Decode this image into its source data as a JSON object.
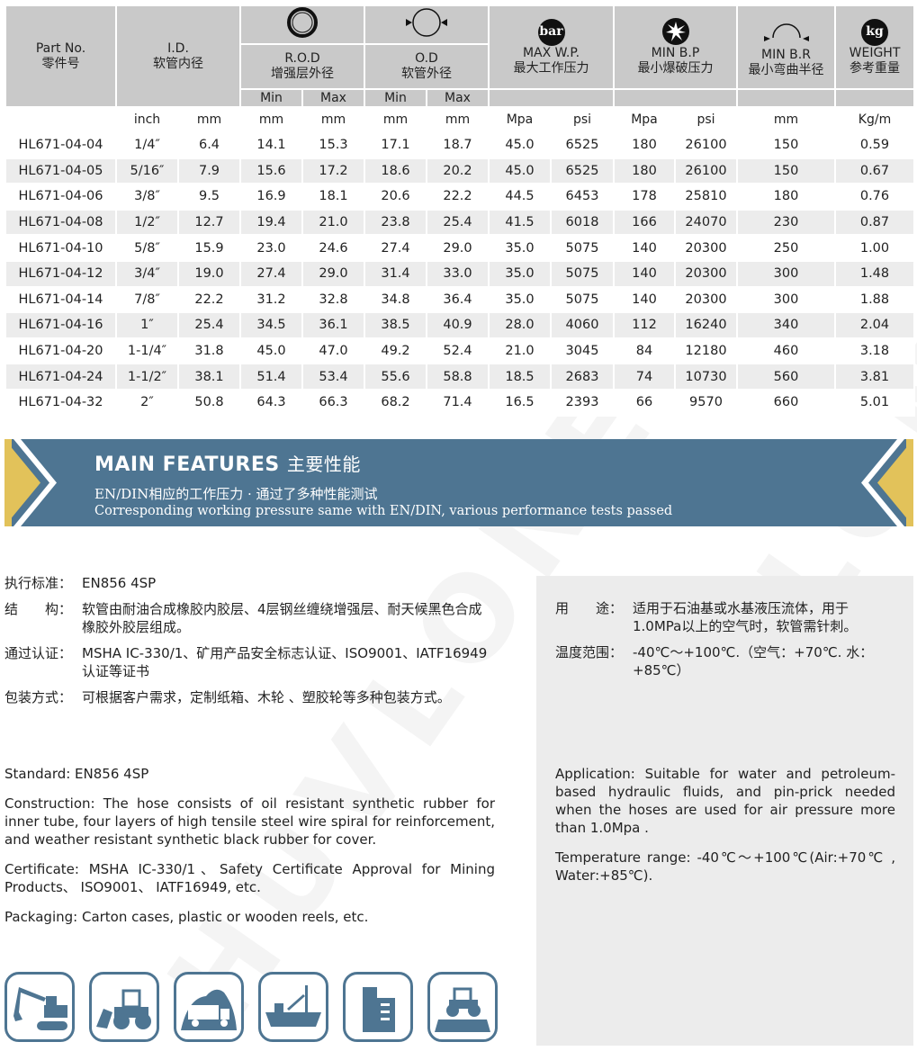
{
  "watermark": "HUVLONE",
  "table": {
    "headers": {
      "part_no": [
        "Part No.",
        "零件号"
      ],
      "id": [
        "I.D.",
        "软管内径"
      ],
      "rod": [
        "R.O.D",
        "增强层外径"
      ],
      "od": [
        "O.D",
        "软管外径"
      ],
      "wp": [
        "MAX W.P.",
        "最大工作压力"
      ],
      "bp": [
        "MIN B.P",
        "最小爆破压力"
      ],
      "br": [
        "MIN B.R",
        "最小弯曲半径"
      ],
      "weight": [
        "WEIGHT",
        "参考重量"
      ],
      "min": "Min",
      "max": "Max",
      "bar_badge": "bar",
      "kg_badge": "kg"
    },
    "units": [
      "",
      "inch",
      "mm",
      "mm",
      "mm",
      "mm",
      "mm",
      "Mpa",
      "psi",
      "Mpa",
      "psi",
      "mm",
      "Kg/m"
    ],
    "rows": [
      [
        "HL671-04-04",
        "1/4″",
        "6.4",
        "14.1",
        "15.3",
        "17.1",
        "18.7",
        "45.0",
        "6525",
        "180",
        "26100",
        "150",
        "0.59"
      ],
      [
        "HL671-04-05",
        "5/16″",
        "7.9",
        "15.6",
        "17.2",
        "18.6",
        "20.2",
        "45.0",
        "6525",
        "180",
        "26100",
        "150",
        "0.67"
      ],
      [
        "HL671-04-06",
        "3/8″",
        "9.5",
        "16.9",
        "18.1",
        "20.6",
        "22.2",
        "44.5",
        "6453",
        "178",
        "25810",
        "180",
        "0.76"
      ],
      [
        "HL671-04-08",
        "1/2″",
        "12.7",
        "19.4",
        "21.0",
        "23.8",
        "25.4",
        "41.5",
        "6018",
        "166",
        "24070",
        "230",
        "0.87"
      ],
      [
        "HL671-04-10",
        "5/8″",
        "15.9",
        "23.0",
        "24.6",
        "27.4",
        "29.0",
        "35.0",
        "5075",
        "140",
        "20300",
        "250",
        "1.00"
      ],
      [
        "HL671-04-12",
        "3/4″",
        "19.0",
        "27.4",
        "29.0",
        "31.4",
        "33.0",
        "35.0",
        "5075",
        "140",
        "20300",
        "300",
        "1.48"
      ],
      [
        "HL671-04-14",
        "7/8″",
        "22.2",
        "31.2",
        "32.8",
        "34.8",
        "36.4",
        "35.0",
        "5075",
        "140",
        "20300",
        "300",
        "1.88"
      ],
      [
        "HL671-04-16",
        "1″",
        "25.4",
        "34.5",
        "36.1",
        "38.5",
        "40.9",
        "28.0",
        "4060",
        "112",
        "16240",
        "340",
        "2.04"
      ],
      [
        "HL671-04-20",
        "1-1/4″",
        "31.8",
        "45.0",
        "47.0",
        "49.2",
        "52.4",
        "21.0",
        "3045",
        "84",
        "12180",
        "460",
        "3.18"
      ],
      [
        "HL671-04-24",
        "1-1/2″",
        "38.1",
        "51.4",
        "53.4",
        "55.6",
        "58.8",
        "18.5",
        "2683",
        "74",
        "10730",
        "560",
        "3.81"
      ],
      [
        "HL671-04-32",
        "2″",
        "50.8",
        "64.3",
        "66.3",
        "68.2",
        "71.4",
        "16.5",
        "2393",
        "66",
        "9570",
        "660",
        "5.01"
      ]
    ]
  },
  "banner": {
    "title": "MAIN FEATURES",
    "title_cn": "主要性能",
    "subtitle_cn": "EN/DIN相应的工作压力 · 通过了多种性能测试",
    "subtitle_en": "Corresponding working pressure same with EN/DIN, various performance tests passed",
    "colors": {
      "background": "#4e7592",
      "accent": "#e2c25a"
    }
  },
  "features_cn_left": [
    {
      "label": "执行标准：",
      "value": "EN856 4SP"
    },
    {
      "label": "结　　构：",
      "value": "软管由耐油合成橡胶内胶层、4层钢丝缠绕增强层、耐天候黑色合成橡胶外胶层组成。"
    },
    {
      "label": "通过认证：",
      "value": "MSHA IC-330/1、矿用产品安全标志认证、ISO9001、IATF16949认证等证书"
    },
    {
      "label": "包装方式：",
      "value": "可根据客户需求，定制纸箱、木轮 、塑胶轮等多种包装方式。"
    }
  ],
  "features_cn_right": [
    {
      "label": "用　　途：",
      "value": "适用于石油基或水基液压流体，用于1.0MPa以上的空气时，软管需针刺。"
    },
    {
      "label": "温度范围：",
      "value": "-40℃～+100℃.（空气：+70℃. 水：+85℃）"
    }
  ],
  "features_en_left": [
    "Standard: EN856 4SP",
    "Construction: The hose consists of oil resistant synthetic rubber for inner tube, four layers of high tensile steel wire spiral for reinforcement, and weather resistant synthetic black rubber for cover.",
    "Certificate: MSHA IC-330/1、Safety Certificate Approval for Mining Products、 ISO9001、 IATF16949, etc.",
    "Packaging: Carton cases, plastic or wooden reels, etc."
  ],
  "features_en_right": [
    "Application: Suitable for water and petroleum-based hydraulic fluids, and pin-prick needed when the hoses are used for air pressure more than 1.0Mpa .",
    "Temperature range: -40℃～+100℃(Air:+70℃ , Water:+85℃)."
  ],
  "application_icons": [
    "excavator-icon",
    "wheel-loader-icon",
    "mining-truck-icon",
    "ship-crane-icon",
    "building-icon",
    "tractor-agriculture-icon"
  ]
}
